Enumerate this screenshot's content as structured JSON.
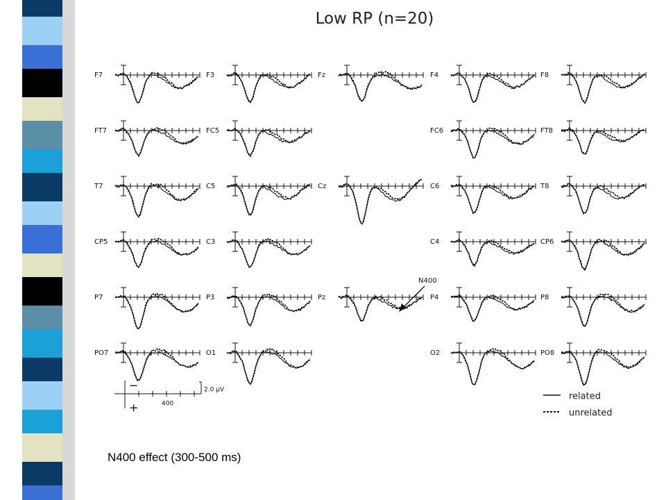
{
  "title": "Low RP (n=20)",
  "columns": [
    [
      "F7",
      "FT7",
      "T7",
      "CP5",
      "P7",
      "PO7"
    ],
    [
      "F3",
      "FC5",
      "C5",
      "C3",
      "P3",
      "O1"
    ],
    [
      "Fz",
      "Cz",
      "Pz"
    ],
    [
      "F4",
      "FC6",
      "C6",
      "C4",
      "P4",
      "O2"
    ],
    [
      "F8",
      "FT8",
      "T8",
      "CP6",
      "P8",
      "PO8"
    ]
  ],
  "annotation": "N400",
  "scale": {
    "negative": "−",
    "positive": "+",
    "amplitude": "2.0 μV",
    "time": "400"
  },
  "legend": [
    "related",
    "unrelated"
  ],
  "caption": "N400 effect (300-500 ms)"
}
